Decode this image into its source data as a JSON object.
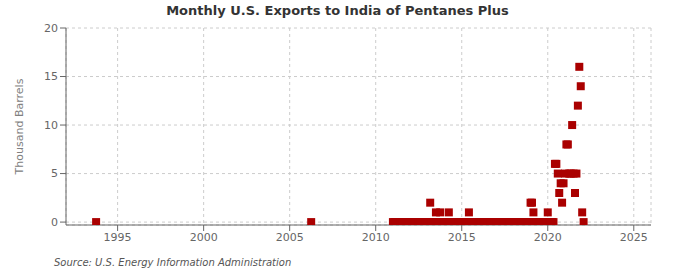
{
  "chart_data": {
    "type": "scatter",
    "title": "Monthly U.S. Exports to India of Pentanes Plus",
    "ylabel": "Thousand Barrels",
    "annotations": [
      "Source: U.S. Energy Information Administration"
    ],
    "xlim": [
      1992,
      2026
    ],
    "ylim": [
      -0.3,
      20
    ],
    "xticks": [
      1995,
      2000,
      2005,
      2010,
      2015,
      2020,
      2025
    ],
    "yticks": [
      0,
      5,
      10,
      15,
      20
    ],
    "color": "#aa0000",
    "marker": "square",
    "grid": true,
    "x": [
      1993.75,
      2006.25,
      2011.0,
      2011.083,
      2011.167,
      2011.25,
      2011.333,
      2011.417,
      2011.5,
      2011.583,
      2011.667,
      2011.75,
      2011.833,
      2011.917,
      2012.0,
      2012.083,
      2012.167,
      2012.25,
      2012.333,
      2012.417,
      2012.5,
      2012.583,
      2012.667,
      2012.75,
      2012.833,
      2012.917,
      2013.0,
      2013.083,
      2013.167,
      2013.25,
      2013.333,
      2013.417,
      2013.5,
      2013.583,
      2013.667,
      2013.75,
      2013.833,
      2013.917,
      2014.0,
      2014.083,
      2014.167,
      2014.25,
      2014.333,
      2014.417,
      2014.5,
      2014.583,
      2014.667,
      2014.75,
      2014.833,
      2014.917,
      2015.0,
      2015.083,
      2015.167,
      2015.25,
      2015.333,
      2015.417,
      2015.5,
      2015.583,
      2015.667,
      2015.75,
      2015.833,
      2015.917,
      2016.0,
      2016.083,
      2016.167,
      2016.25,
      2016.333,
      2016.417,
      2016.5,
      2016.583,
      2016.667,
      2016.75,
      2016.833,
      2016.917,
      2017.0,
      2017.083,
      2017.167,
      2017.25,
      2017.333,
      2017.417,
      2017.5,
      2017.583,
      2017.667,
      2017.75,
      2017.833,
      2017.917,
      2018.0,
      2018.083,
      2018.167,
      2018.25,
      2018.333,
      2018.417,
      2018.5,
      2018.583,
      2018.667,
      2018.75,
      2018.833,
      2018.917,
      2019.0,
      2019.083,
      2019.167,
      2019.25,
      2019.333,
      2019.417,
      2019.5,
      2019.583,
      2019.667,
      2019.75,
      2019.833,
      2019.917,
      2020.0,
      2020.083,
      2020.167,
      2020.25,
      2020.333,
      2020.417,
      2020.5,
      2020.583,
      2020.667,
      2020.75,
      2020.833,
      2020.917,
      2021.0,
      2021.083,
      2021.167,
      2021.25,
      2021.333,
      2021.417,
      2021.5,
      2021.583,
      2021.667,
      2021.75,
      2021.833,
      2021.917,
      2022.0,
      2022.083
    ],
    "values": [
      0.0,
      0.0,
      0.0,
      0.0,
      0.0,
      0.0,
      0.0,
      0.0,
      0.0,
      0.0,
      0.0,
      0.0,
      0.0,
      0.0,
      0.0,
      0.0,
      0.0,
      0.0,
      0.0,
      0.0,
      0.0,
      0.0,
      0.0,
      0.0,
      0.0,
      0.0,
      0.0,
      0.0,
      2.0,
      0.0,
      0.0,
      0.0,
      1.0,
      0.0,
      0.0,
      1.0,
      0.0,
      0.0,
      0.0,
      0.0,
      0.0,
      1.0,
      0.0,
      0.0,
      0.0,
      0.0,
      0.0,
      0.0,
      0.0,
      0.0,
      0.0,
      0.0,
      0.0,
      0.0,
      0.0,
      1.0,
      0.0,
      0.0,
      0.0,
      0.0,
      0.0,
      0.0,
      0.0,
      0.0,
      0.0,
      0.0,
      0.0,
      0.0,
      0.0,
      0.0,
      0.0,
      0.0,
      0.0,
      0.0,
      0.0,
      0.0,
      0.0,
      0.0,
      0.0,
      0.0,
      0.0,
      0.0,
      0.0,
      0.0,
      0.0,
      0.0,
      0.0,
      0.0,
      0.0,
      0.0,
      0.0,
      0.0,
      0.0,
      0.0,
      0.0,
      0.0,
      0.0,
      0.0,
      2.0,
      2.0,
      1.0,
      0.0,
      0.0,
      0.0,
      0.0,
      0.0,
      0.0,
      0.0,
      0.0,
      0.0,
      1.0,
      0.0,
      0.0,
      0.0,
      0.0,
      6.0,
      6.0,
      5.0,
      3.0,
      4.0,
      2.0,
      4.0,
      5.0,
      8.0,
      8.0,
      5.0,
      5.0,
      10.0,
      5.0,
      3.0,
      5.0,
      12.0,
      16.0,
      14.0,
      1.0,
      0.0
    ]
  }
}
